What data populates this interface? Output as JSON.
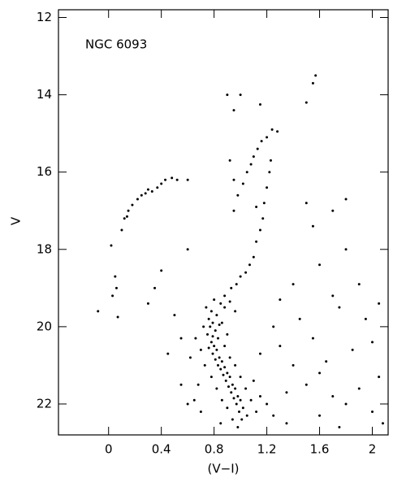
{
  "chart_data": {
    "type": "scatter",
    "title": "NGC 6093",
    "x_label": "(V−I)",
    "y_label": "V",
    "color": "#000000",
    "xlim": [
      -0.38,
      2.12
    ],
    "ylim": [
      22.8,
      11.8
    ],
    "xticks": [
      0,
      0.4,
      0.8,
      1.2,
      1.6,
      2
    ],
    "yticks": [
      12,
      14,
      16,
      18,
      20,
      22
    ],
    "x": [
      0.02,
      0.05,
      0.06,
      0.03,
      -0.08,
      0.07,
      0.12,
      0.15,
      0.18,
      0.22,
      0.25,
      0.28,
      0.3,
      0.33,
      0.37,
      0.4,
      0.43,
      0.48,
      0.52,
      0.6,
      0.1,
      0.14,
      0.95,
      0.98,
      1.02,
      1.05,
      1.08,
      1.1,
      1.13,
      1.16,
      1.2,
      1.24,
      1.28,
      1.5,
      1.55,
      1.57,
      1.15,
      1.12,
      1.1,
      1.07,
      1.04,
      1.0,
      0.97,
      0.93,
      1.18,
      1.2,
      1.22,
      1.23,
      1.12,
      1.17,
      0.9,
      1.0,
      1.15,
      0.95,
      0.92,
      0.95,
      0.8,
      0.85,
      0.88,
      0.78,
      0.82,
      0.76,
      0.79,
      0.84,
      0.77,
      0.81,
      0.75,
      0.79,
      0.83,
      0.78,
      0.8,
      0.76,
      0.82,
      0.79,
      0.84,
      0.81,
      0.86,
      0.83,
      0.88,
      0.85,
      0.9,
      0.87,
      0.92,
      0.89,
      0.94,
      0.91,
      0.96,
      0.93,
      0.98,
      0.95,
      1.0,
      0.97,
      1.02,
      0.99,
      1.05,
      1.01,
      0.74,
      0.72,
      0.7,
      0.73,
      0.78,
      0.82,
      0.86,
      0.9,
      0.94,
      0.88,
      0.92,
      0.96,
      0.86,
      0.9,
      0.88,
      0.92,
      0.96,
      1.0,
      1.04,
      1.08,
      1.12,
      1.1,
      1.15,
      1.2,
      1.25,
      0.68,
      0.65,
      0.7,
      0.62,
      0.66,
      1.3,
      1.4,
      1.5,
      1.6,
      1.7,
      1.8,
      1.9,
      2.0,
      2.05,
      1.45,
      1.55,
      1.65,
      1.75,
      1.85,
      1.95,
      2.0,
      1.9,
      1.8,
      1.7,
      1.5,
      1.55,
      1.6,
      1.8,
      1.7,
      2.05,
      1.35,
      1.25,
      1.15,
      1.3,
      1.4,
      0.5,
      0.45,
      0.55,
      0.3,
      0.35,
      0.4,
      0.6,
      0.55,
      0.6,
      1.35,
      1.6,
      1.75,
      2.08,
      0.98,
      0.85
    ],
    "values": [
      17.9,
      18.7,
      19.0,
      19.2,
      19.6,
      19.75,
      17.2,
      17.0,
      16.85,
      16.7,
      16.6,
      16.55,
      16.45,
      16.5,
      16.4,
      16.3,
      16.2,
      16.15,
      16.2,
      16.2,
      17.5,
      17.15,
      17.0,
      16.6,
      16.3,
      16.0,
      15.8,
      15.6,
      15.4,
      15.2,
      15.1,
      14.9,
      14.95,
      14.2,
      13.7,
      13.5,
      17.5,
      17.8,
      18.2,
      18.4,
      18.6,
      18.7,
      18.9,
      19.0,
      16.8,
      16.4,
      16.0,
      15.7,
      16.9,
      17.2,
      14.0,
      14.0,
      14.25,
      14.4,
      15.7,
      16.2,
      19.3,
      19.4,
      19.5,
      19.6,
      19.7,
      19.8,
      19.9,
      19.95,
      20.0,
      20.1,
      20.2,
      20.25,
      20.3,
      20.4,
      20.5,
      20.55,
      20.6,
      20.7,
      20.8,
      20.85,
      20.9,
      21.0,
      21.05,
      21.1,
      21.2,
      21.25,
      21.3,
      21.4,
      21.5,
      21.55,
      21.6,
      21.7,
      21.8,
      21.85,
      21.9,
      22.0,
      22.1,
      22.2,
      22.3,
      22.4,
      19.5,
      20.0,
      20.6,
      21.0,
      21.3,
      21.6,
      21.9,
      22.1,
      22.4,
      19.2,
      19.35,
      19.6,
      19.9,
      20.2,
      20.5,
      20.8,
      21.0,
      21.3,
      21.6,
      21.9,
      22.2,
      21.4,
      21.8,
      22.0,
      22.3,
      21.5,
      21.9,
      22.2,
      20.8,
      20.3,
      20.5,
      21.0,
      21.5,
      21.2,
      21.8,
      22.0,
      21.6,
      22.2,
      21.3,
      19.8,
      20.3,
      20.9,
      19.5,
      20.6,
      19.8,
      20.4,
      18.9,
      18.0,
      17.0,
      16.8,
      17.4,
      18.4,
      16.7,
      19.2,
      19.4,
      21.7,
      20.0,
      20.7,
      19.3,
      18.9,
      19.7,
      20.7,
      20.3,
      19.4,
      19.0,
      18.55,
      18.0,
      21.5,
      22.0,
      22.5,
      22.3,
      22.6,
      22.5,
      22.6,
      22.5
    ]
  }
}
